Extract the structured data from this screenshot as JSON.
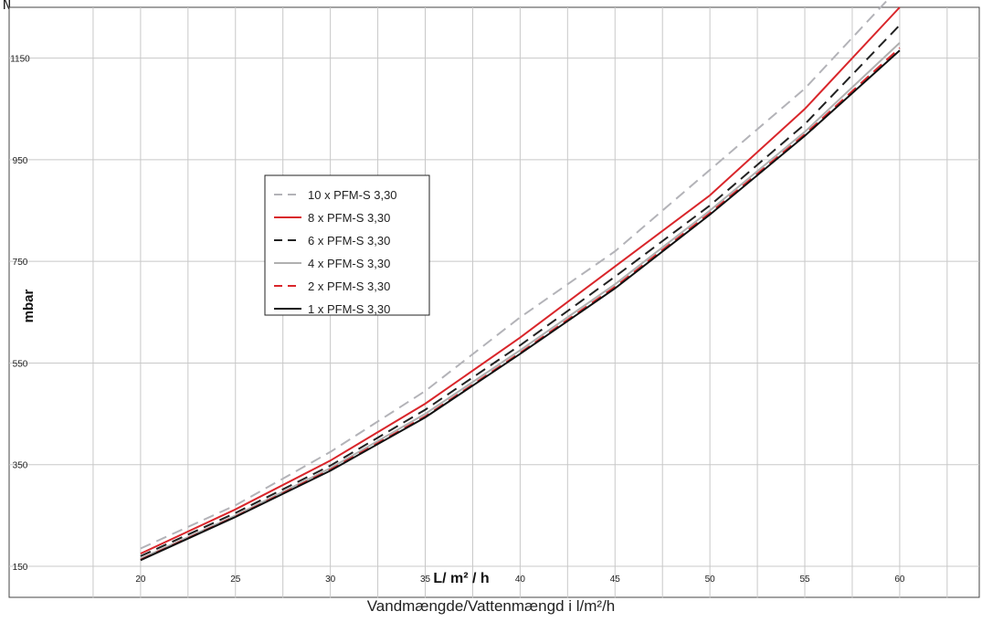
{
  "corner_text": "N",
  "caption": "Vandmængde/Vattenmængd i l/m²/h",
  "chart_data": {
    "type": "line",
    "title": "",
    "xlabel": "L/ m² / h",
    "ylabel": "mbar",
    "xlim": [
      15,
      64
    ],
    "ylim": [
      150,
      1250
    ],
    "x_ticks": [
      20,
      25,
      30,
      35,
      40,
      45,
      50,
      55,
      60
    ],
    "y_ticks": [
      150,
      350,
      550,
      750,
      950,
      1150
    ],
    "grid": true,
    "legend_position": "center-left",
    "x": [
      20,
      25,
      30,
      35,
      40,
      45,
      50,
      55,
      60
    ],
    "series": [
      {
        "name": "10 x PFM-S 3,30",
        "color": "#b3b3b8",
        "dash": "dashed",
        "values": [
          185,
          270,
          375,
          495,
          640,
          770,
          930,
          1090,
          1290
        ]
      },
      {
        "name": "8 x PFM-S 3,30",
        "color": "#d9262b",
        "dash": "solid",
        "values": [
          175,
          262,
          358,
          470,
          600,
          740,
          880,
          1050,
          1250
        ]
      },
      {
        "name": "6 x PFM-S 3,30",
        "color": "#222222",
        "dash": "dashed",
        "values": [
          170,
          255,
          348,
          458,
          585,
          720,
          860,
          1020,
          1215
        ]
      },
      {
        "name": "4 x PFM-S 3,30",
        "color": "#b0b0b0",
        "dash": "solid",
        "values": [
          165,
          250,
          343,
          450,
          575,
          705,
          850,
          1005,
          1180
        ]
      },
      {
        "name": "2 x PFM-S 3,30",
        "color": "#d9262b",
        "dash": "dashed",
        "values": [
          163,
          248,
          340,
          445,
          570,
          700,
          845,
          1000,
          1170
        ]
      },
      {
        "name": "1 x PFM-S 3,30",
        "color": "#111111",
        "dash": "solid",
        "values": [
          162,
          247,
          338,
          443,
          568,
          697,
          842,
          997,
          1165
        ]
      }
    ]
  }
}
